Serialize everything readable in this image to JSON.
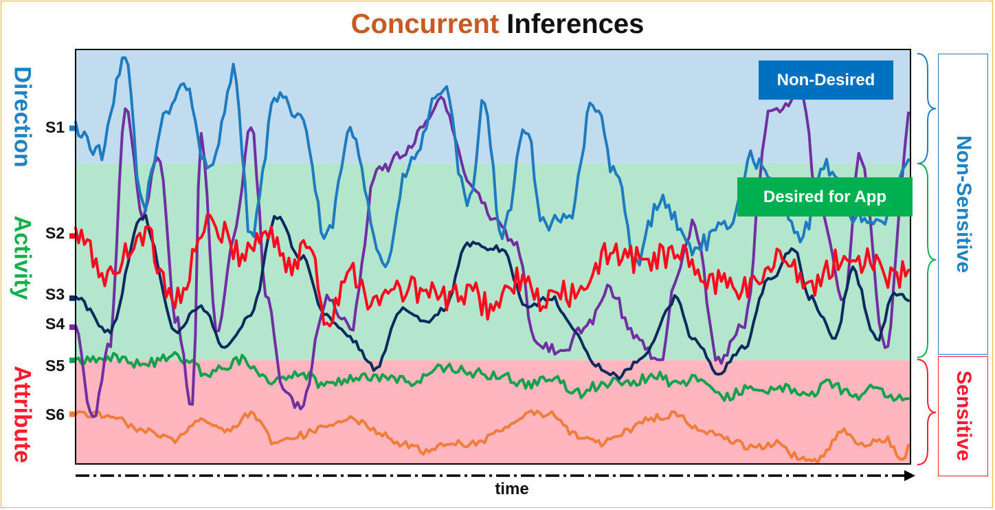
{
  "title": {
    "part1": "Concurrent",
    "part2": "Inferences"
  },
  "colors": {
    "title_accent": "#c55a23",
    "direction_band": "#c1dcee",
    "activity_band": "#b3e6cc",
    "attribute_band": "#ffb6be",
    "direction_text": "#1f82c2",
    "activity_text": "#13b050",
    "attribute_text": "#ff1a2e",
    "non_desired_badge": "#0070c0",
    "desired_badge": "#00b050",
    "frame": "#f2b533"
  },
  "regions": [
    {
      "id": "direction",
      "label": "Direction"
    },
    {
      "id": "activity",
      "label": "Activity"
    },
    {
      "id": "attribute",
      "label": "Attribute"
    }
  ],
  "badges": {
    "non_desired": "Non-Desired",
    "desired": "Desired for App"
  },
  "right_labels": {
    "non_sensitive": "Non-Sensitive",
    "sensitive": "Sensitive"
  },
  "chart_data": {
    "type": "line",
    "title": "Concurrent Inferences",
    "xlabel": "time",
    "ylabel": "",
    "x_ticks": "none",
    "y_axis": "categorical signal levels",
    "legend": "none",
    "grid": false,
    "ylim": [
      0,
      100
    ],
    "band_boundaries": {
      "direction_activity": 72.5,
      "activity_attribute": 25
    },
    "series": [
      {
        "name": "S1",
        "color": "#1e7bbf",
        "start_level": 81,
        "range": [
          45,
          98
        ],
        "keypoints": [
          [
            0,
            81
          ],
          [
            3,
            75
          ],
          [
            6,
            98
          ],
          [
            8,
            62
          ],
          [
            11,
            86
          ],
          [
            13,
            92
          ],
          [
            16,
            70
          ],
          [
            19,
            95
          ],
          [
            21,
            55
          ],
          [
            24,
            88
          ],
          [
            27,
            84
          ],
          [
            30,
            54
          ],
          [
            33,
            80
          ],
          [
            37,
            48
          ],
          [
            40,
            72
          ],
          [
            44,
            91
          ],
          [
            47,
            62
          ],
          [
            49,
            88
          ],
          [
            51,
            54
          ],
          [
            54,
            82
          ],
          [
            56,
            58
          ],
          [
            59,
            59
          ],
          [
            62,
            87
          ],
          [
            65,
            68
          ],
          [
            67,
            48
          ],
          [
            70,
            64
          ],
          [
            74,
            52
          ],
          [
            78,
            57
          ],
          [
            81,
            74
          ],
          [
            84,
            66
          ],
          [
            87,
            55
          ],
          [
            90,
            72
          ],
          [
            93,
            60
          ],
          [
            97,
            58
          ],
          [
            100,
            74
          ]
        ]
      },
      {
        "name": "S2",
        "color": "#ff0a1e",
        "start_level": 55,
        "range": [
          30,
          60
        ],
        "keypoints": [
          [
            0,
            55
          ],
          [
            4,
            45
          ],
          [
            8,
            56
          ],
          [
            12,
            40
          ],
          [
            16,
            58
          ],
          [
            20,
            51
          ],
          [
            23,
            56
          ],
          [
            26,
            47
          ],
          [
            28,
            54
          ],
          [
            30,
            35
          ],
          [
            33,
            47
          ],
          [
            36,
            38
          ],
          [
            38,
            42
          ],
          [
            41,
            42
          ],
          [
            44,
            40
          ],
          [
            47,
            41
          ],
          [
            50,
            38
          ],
          [
            53,
            44
          ],
          [
            56,
            39
          ],
          [
            58,
            41
          ],
          [
            61,
            41
          ],
          [
            64,
            52
          ],
          [
            67,
            49
          ],
          [
            70,
            50
          ],
          [
            73,
            50
          ],
          [
            76,
            43
          ],
          [
            78,
            45
          ],
          [
            80,
            42
          ],
          [
            82,
            45
          ],
          [
            85,
            51
          ],
          [
            88,
            41
          ],
          [
            90,
            48
          ],
          [
            93,
            49
          ],
          [
            96,
            50
          ],
          [
            98,
            44
          ],
          [
            100,
            47
          ]
        ]
      },
      {
        "name": "S3",
        "color": "#0d2a5e",
        "start_level": 40,
        "range": [
          20,
          62
        ],
        "keypoints": [
          [
            0,
            40
          ],
          [
            4,
            32
          ],
          [
            8,
            60
          ],
          [
            12,
            32
          ],
          [
            15,
            38
          ],
          [
            18,
            28
          ],
          [
            21,
            36
          ],
          [
            24,
            60
          ],
          [
            27,
            50
          ],
          [
            30,
            36
          ],
          [
            33,
            30
          ],
          [
            36,
            23
          ],
          [
            39,
            37
          ],
          [
            42,
            34
          ],
          [
            44,
            37
          ],
          [
            47,
            53
          ],
          [
            51,
            52
          ],
          [
            54,
            38
          ],
          [
            57,
            40
          ],
          [
            60,
            32
          ],
          [
            62,
            24
          ],
          [
            65,
            21
          ],
          [
            68,
            26
          ],
          [
            72,
            40
          ],
          [
            74,
            30
          ],
          [
            77,
            22
          ],
          [
            80,
            28
          ],
          [
            83,
            44
          ],
          [
            86,
            52
          ],
          [
            88,
            40
          ],
          [
            91,
            30
          ],
          [
            93,
            47
          ],
          [
            96,
            30
          ],
          [
            98,
            41
          ],
          [
            100,
            40
          ]
        ]
      },
      {
        "name": "S4",
        "color": "#7030a0",
        "start_level": 33,
        "range": [
          5,
          93
        ],
        "keypoints": [
          [
            0,
            33
          ],
          [
            2,
            10
          ],
          [
            4,
            28
          ],
          [
            6,
            85
          ],
          [
            8,
            60
          ],
          [
            10,
            75
          ],
          [
            12,
            35
          ],
          [
            14,
            14
          ],
          [
            15,
            80
          ],
          [
            17,
            31
          ],
          [
            19,
            55
          ],
          [
            21,
            82
          ],
          [
            23,
            39
          ],
          [
            25,
            18
          ],
          [
            27,
            13
          ],
          [
            30,
            40
          ],
          [
            33,
            33
          ],
          [
            36,
            70
          ],
          [
            39,
            74
          ],
          [
            42,
            83
          ],
          [
            44,
            88
          ],
          [
            47,
            68
          ],
          [
            50,
            60
          ],
          [
            53,
            52
          ],
          [
            55,
            30
          ],
          [
            58,
            27
          ],
          [
            61,
            33
          ],
          [
            64,
            42
          ],
          [
            67,
            31
          ],
          [
            70,
            24
          ],
          [
            72,
            45
          ],
          [
            74,
            58
          ],
          [
            77,
            25
          ],
          [
            80,
            33
          ],
          [
            83,
            84
          ],
          [
            87,
            90
          ],
          [
            89,
            62
          ],
          [
            92,
            40
          ],
          [
            94,
            75
          ],
          [
            97,
            28
          ],
          [
            100,
            85
          ]
        ]
      },
      {
        "name": "S5",
        "color": "#14a04c",
        "start_level": 25,
        "range": [
          13,
          28
        ],
        "keypoints": [
          [
            0,
            25
          ],
          [
            4,
            26
          ],
          [
            8,
            24
          ],
          [
            12,
            26
          ],
          [
            16,
            22
          ],
          [
            20,
            25
          ],
          [
            24,
            20
          ],
          [
            27,
            22
          ],
          [
            30,
            19
          ],
          [
            33,
            21
          ],
          [
            36,
            21
          ],
          [
            40,
            20
          ],
          [
            44,
            23
          ],
          [
            48,
            22
          ],
          [
            51,
            21
          ],
          [
            54,
            19
          ],
          [
            57,
            21
          ],
          [
            60,
            17
          ],
          [
            63,
            19
          ],
          [
            66,
            20
          ],
          [
            70,
            21
          ],
          [
            72,
            19
          ],
          [
            75,
            21
          ],
          [
            78,
            16
          ],
          [
            80,
            18
          ],
          [
            82,
            18
          ],
          [
            85,
            18
          ],
          [
            88,
            17
          ],
          [
            90,
            19
          ],
          [
            92,
            18
          ],
          [
            94,
            16
          ],
          [
            96,
            19
          ],
          [
            98,
            15
          ],
          [
            100,
            17
          ]
        ]
      },
      {
        "name": "S6",
        "color": "#f07d3a",
        "start_level": 12,
        "range": [
          0,
          15
        ],
        "keypoints": [
          [
            0,
            12
          ],
          [
            4,
            12
          ],
          [
            8,
            8
          ],
          [
            12,
            6
          ],
          [
            15,
            11
          ],
          [
            18,
            8
          ],
          [
            21,
            12
          ],
          [
            24,
            5
          ],
          [
            27,
            7
          ],
          [
            30,
            9
          ],
          [
            33,
            11
          ],
          [
            36,
            8
          ],
          [
            39,
            5
          ],
          [
            42,
            3
          ],
          [
            45,
            5
          ],
          [
            48,
            5
          ],
          [
            51,
            8
          ],
          [
            54,
            12
          ],
          [
            57,
            12
          ],
          [
            60,
            7
          ],
          [
            63,
            5
          ],
          [
            66,
            8
          ],
          [
            69,
            11
          ],
          [
            72,
            12
          ],
          [
            75,
            8
          ],
          [
            78,
            6
          ],
          [
            81,
            4
          ],
          [
            84,
            5
          ],
          [
            86,
            2
          ],
          [
            89,
            1
          ],
          [
            92,
            8
          ],
          [
            94,
            5
          ],
          [
            97,
            6
          ],
          [
            99,
            1
          ],
          [
            100,
            5
          ]
        ]
      }
    ]
  }
}
